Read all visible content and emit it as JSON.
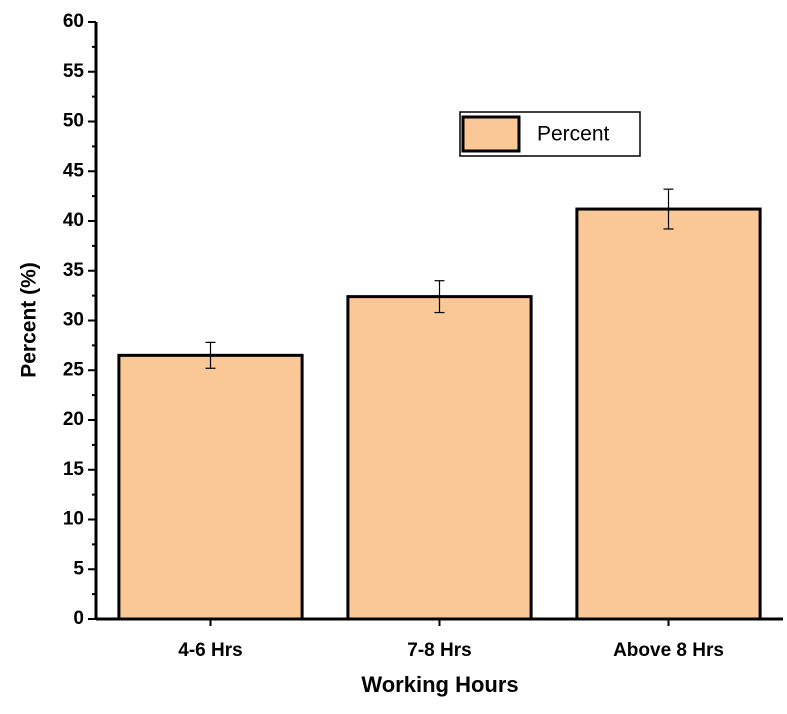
{
  "chart_data": {
    "type": "bar",
    "x_label": "Working Hours",
    "y_label": "Percent (%)",
    "categories": [
      "4-6 Hrs",
      "7-8 Hrs",
      "Above 8 Hrs"
    ],
    "series": [
      {
        "name": "Percent",
        "color": "#fac896",
        "values": [
          26.5,
          32.4,
          41.2
        ],
        "errors": [
          1.3,
          1.6,
          2.0
        ]
      }
    ],
    "ylim": [
      0,
      60
    ],
    "yticks": [
      0,
      5,
      10,
      15,
      20,
      25,
      30,
      35,
      40,
      45,
      50,
      55,
      60
    ],
    "legend": "upper right"
  }
}
